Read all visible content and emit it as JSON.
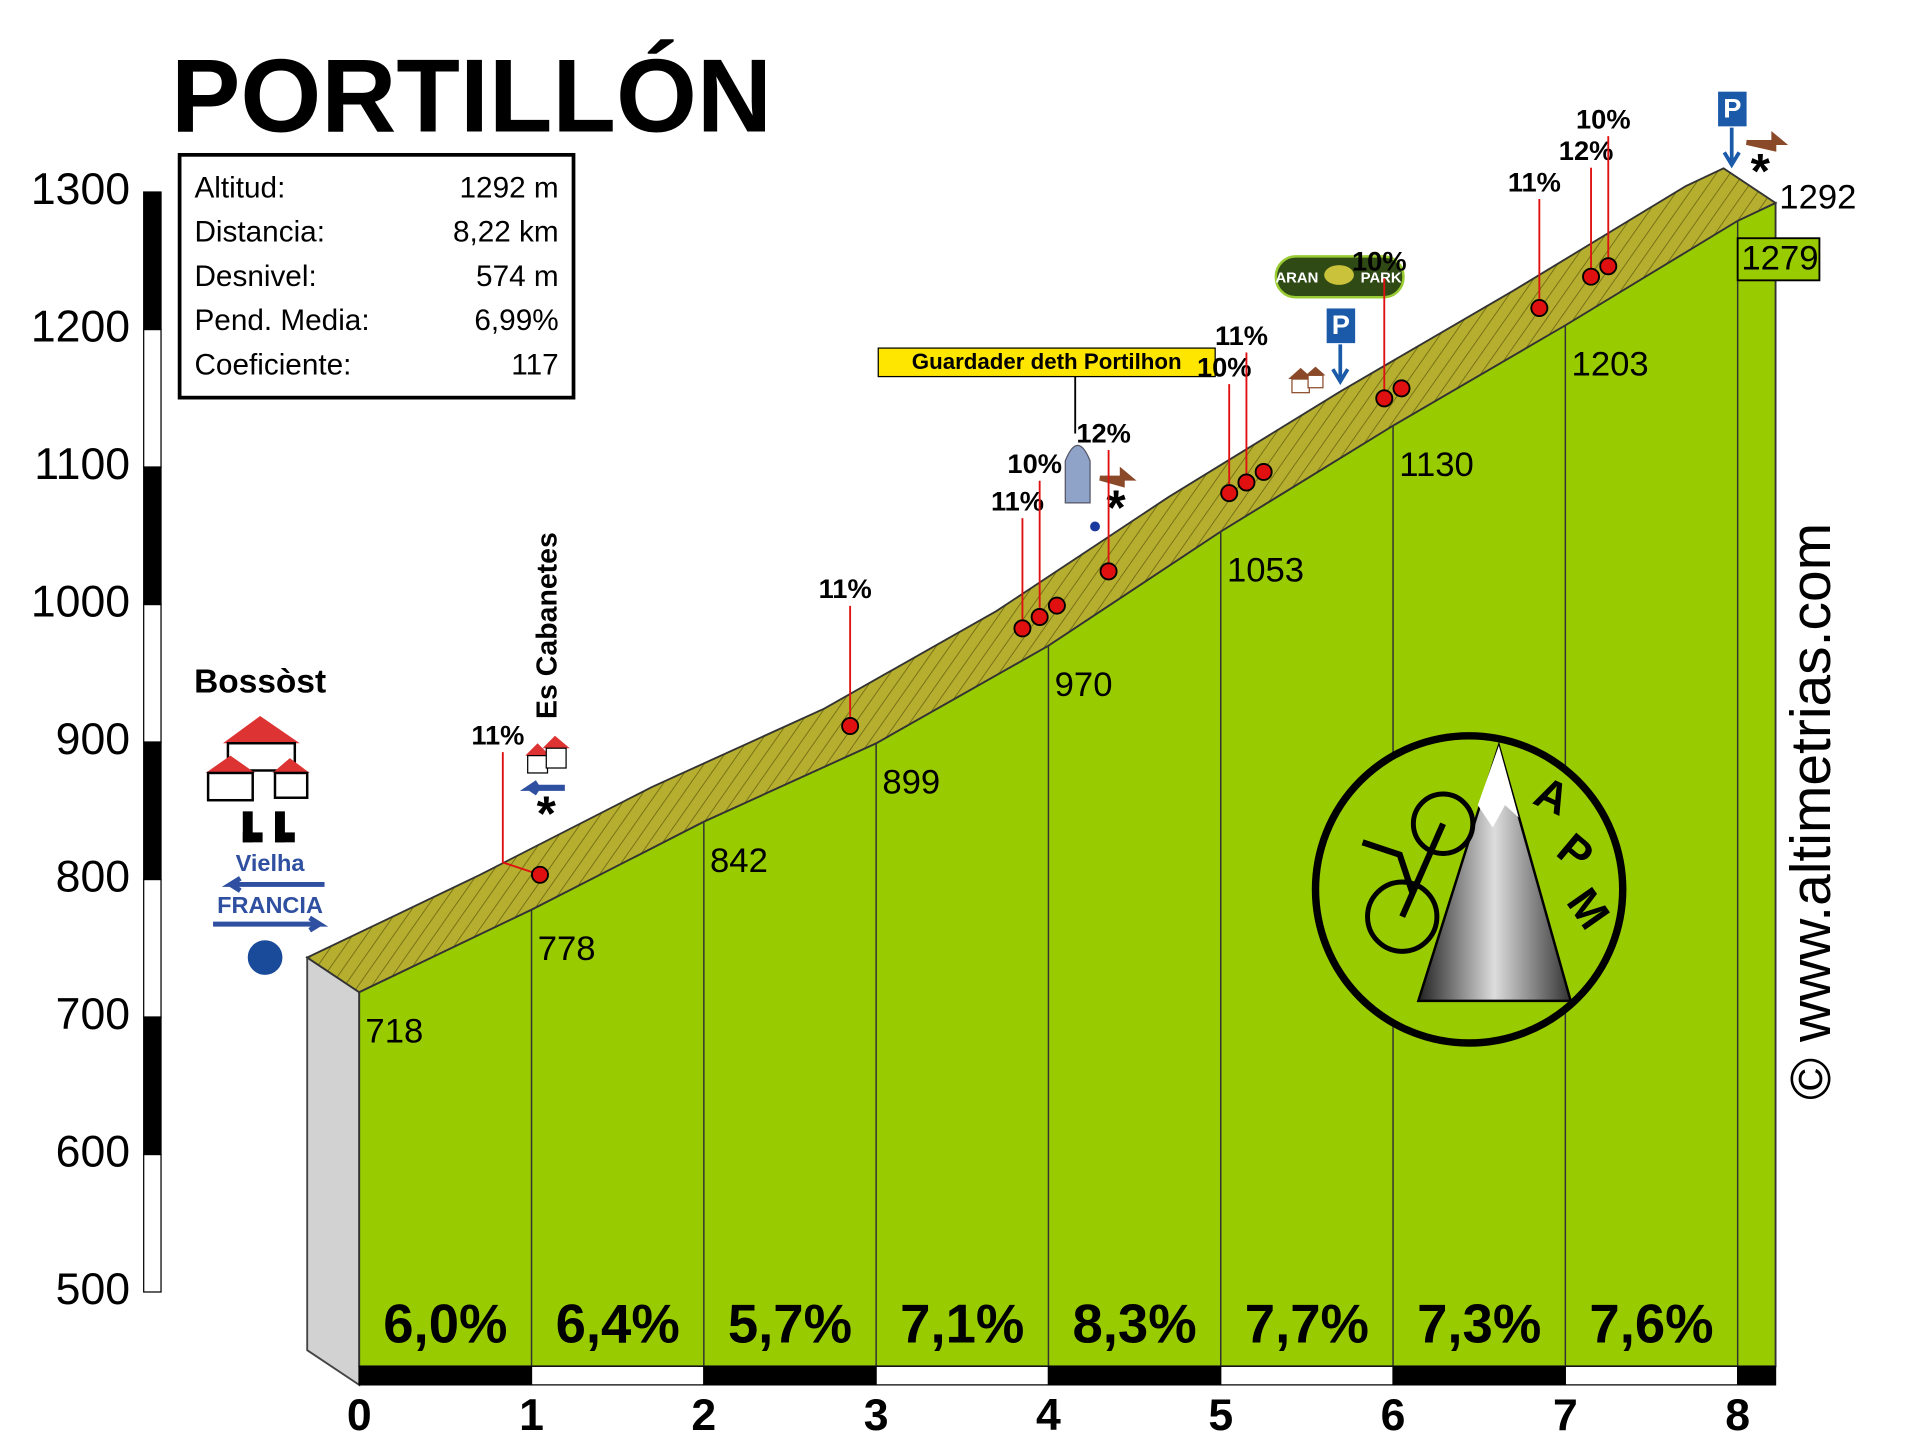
{
  "chart_data": {
    "type": "profile",
    "title": "PORTILLÓN",
    "stats": [
      [
        "Altitud:",
        "1292 m"
      ],
      [
        "Distancia:",
        "8,22 km"
      ],
      [
        "Desnivel:",
        "574 m"
      ],
      [
        "Pend. Media:",
        "6,99%"
      ],
      [
        "Coeficiente:",
        "117"
      ]
    ],
    "x": [
      0,
      1,
      2,
      3,
      4,
      5,
      6,
      7,
      8,
      8.22
    ],
    "values": [
      718,
      778,
      842,
      899,
      970,
      1053,
      1130,
      1203,
      1279,
      1292
    ],
    "xlim": [
      0,
      8.22
    ],
    "xticks": [
      0,
      1,
      2,
      3,
      4,
      5,
      6,
      7,
      8
    ],
    "ylim": [
      500,
      1300
    ],
    "yticks": [
      500,
      600,
      700,
      800,
      900,
      1000,
      1100,
      1200,
      1300
    ],
    "segments": {
      "values": [
        6.0,
        6.4,
        5.7,
        7.1,
        8.3,
        7.7,
        7.3,
        7.6
      ],
      "value_labels": [
        "6,0%",
        "6,4%",
        "5,7%",
        "7,1%",
        "8,3%",
        "7,7%",
        "7,3%",
        "7,6%"
      ]
    },
    "ramps": [
      {
        "x": 1.2,
        "value": 11,
        "label": "11%"
      },
      {
        "x": 3.0,
        "value": 11,
        "label": "11%"
      },
      {
        "x": 4.0,
        "value": 11,
        "label": "11%"
      },
      {
        "x": 4.1,
        "value": 10,
        "label": "10%"
      },
      {
        "x": 4.2
      },
      {
        "x": 4.5,
        "value": 12,
        "label": "12%"
      },
      {
        "x": 5.2,
        "value": 10,
        "label": "10%"
      },
      {
        "x": 5.3,
        "value": 11,
        "label": "11%"
      },
      {
        "x": 5.4
      },
      {
        "x": 6.1,
        "value": 10,
        "label": "10%"
      },
      {
        "x": 6.2
      },
      {
        "x": 7.0,
        "value": 11,
        "label": "11%"
      },
      {
        "x": 7.3,
        "value": 12,
        "label": "12%"
      },
      {
        "x": 7.4,
        "value": 10,
        "label": "10%"
      }
    ],
    "colors": {
      "face": "#99cc00",
      "top": "#b5ae2e",
      "side": "#d2d2d2",
      "ramp": "#e01010"
    }
  },
  "places": {
    "start": "Bossòst",
    "directions": [
      "Vielha",
      "FRANCIA"
    ],
    "hamlet": "Es Cabanetes",
    "monument": "Guardader deth Portilhon",
    "park": [
      "ARAN",
      "PARK"
    ],
    "parking": "P",
    "star": "*",
    "logo": [
      "A",
      "P",
      "M"
    ],
    "credit": "© www.altimetrias.com"
  }
}
